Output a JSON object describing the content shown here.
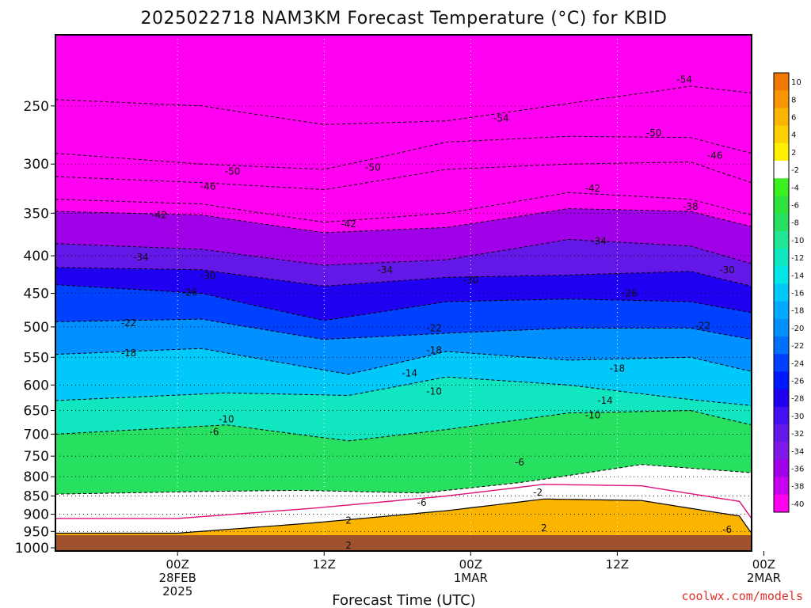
{
  "chart_data": {
    "type": "heatmap",
    "title": "2025022718 NAM3KM Forecast Temperature (°C) for KBID",
    "xlabel": "Forecast Time (UTC)",
    "ylabel": "",
    "y_ticks": [
      250,
      300,
      350,
      400,
      450,
      500,
      550,
      600,
      650,
      700,
      750,
      800,
      850,
      900,
      950,
      1000
    ],
    "y_range_hpa": [
      200,
      1010
    ],
    "y_scale": "log",
    "x_range_hours": [
      -4,
      53
    ],
    "x_ticks": [
      {
        "hour": 6,
        "lines": [
          "00Z",
          "28FEB",
          "2025"
        ]
      },
      {
        "hour": 18,
        "lines": [
          "12Z"
        ]
      },
      {
        "hour": 30,
        "lines": [
          "00Z",
          "1MAR"
        ]
      },
      {
        "hour": 42,
        "lines": [
          "12Z"
        ]
      },
      {
        "hour": 54,
        "lines": [
          "00Z",
          "2MAR"
        ]
      }
    ],
    "grid": true,
    "colorbar": {
      "placement": "right",
      "levels": [
        10,
        8,
        6,
        4,
        2,
        -2,
        -4,
        -6,
        -8,
        -10,
        -12,
        -14,
        -16,
        -18,
        -20,
        -22,
        -24,
        -26,
        -28,
        -30,
        -32,
        -34,
        -36,
        -38,
        -40
      ],
      "colors": [
        "#f07800",
        "#f79600",
        "#fbb400",
        "#fdd000",
        "#fff000",
        "#ffffff",
        "#3cf020",
        "#2ee23c",
        "#28e060",
        "#20e696",
        "#10e6c0",
        "#00e6e6",
        "#00c8f8",
        "#00aaff",
        "#0090ff",
        "#0070ff",
        "#0040ff",
        "#0018ff",
        "#2000f0",
        "#4410f0",
        "#6418e8",
        "#8018e8",
        "#a000e8",
        "#c800f0",
        "#ff00f0"
      ]
    },
    "isotherms": [
      {
        "value": 2,
        "levels_hpa": [
          955,
          955,
          925,
          890,
          858,
          862,
          905,
          955
        ],
        "hours": [
          -4,
          6,
          17,
          28,
          36,
          44,
          52,
          53
        ]
      },
      {
        "value": -6,
        "levels_hpa": [
          845,
          838,
          835,
          842,
          815,
          770,
          790
        ],
        "hours": [
          -4,
          8,
          16,
          26,
          34,
          44,
          53
        ]
      },
      {
        "value": -10,
        "levels_hpa": [
          700,
          680,
          715,
          690,
          655,
          650,
          680
        ],
        "hours": [
          -4,
          10,
          20,
          28,
          38,
          48,
          53
        ]
      },
      {
        "value": -14,
        "levels_hpa": [
          630,
          615,
          620,
          585,
          600,
          628,
          640
        ],
        "hours": [
          -4,
          10,
          20,
          28,
          38,
          48,
          53
        ]
      },
      {
        "value": -18,
        "levels_hpa": [
          545,
          535,
          580,
          540,
          555,
          550,
          575
        ],
        "hours": [
          -4,
          8,
          20,
          28,
          38,
          48,
          53
        ]
      },
      {
        "value": -22,
        "levels_hpa": [
          492,
          488,
          520,
          510,
          502,
          502,
          520
        ],
        "hours": [
          -4,
          8,
          18,
          28,
          38,
          48,
          53
        ]
      },
      {
        "value": -26,
        "levels_hpa": [
          438,
          450,
          490,
          462,
          458,
          462,
          478
        ],
        "hours": [
          -4,
          8,
          18,
          28,
          38,
          48,
          53
        ]
      },
      {
        "value": -30,
        "levels_hpa": [
          415,
          418,
          440,
          428,
          425,
          420,
          440
        ],
        "hours": [
          -4,
          8,
          18,
          28,
          38,
          48,
          53
        ]
      },
      {
        "value": -34,
        "levels_hpa": [
          385,
          392,
          412,
          405,
          380,
          388,
          410
        ],
        "hours": [
          -4,
          8,
          18,
          28,
          38,
          48,
          53
        ]
      },
      {
        "value": -38,
        "levels_hpa": [
          348,
          352,
          372,
          366,
          345,
          348,
          365
        ],
        "hours": [
          -4,
          8,
          18,
          28,
          38,
          48,
          53
        ]
      },
      {
        "value": -42,
        "levels_hpa": [
          335,
          340,
          360,
          350,
          328,
          335,
          352
        ],
        "hours": [
          -4,
          8,
          18,
          28,
          38,
          48,
          53
        ]
      },
      {
        "value": -46,
        "levels_hpa": [
          312,
          318,
          325,
          305,
          300,
          298,
          318
        ],
        "hours": [
          -4,
          8,
          18,
          28,
          38,
          48,
          53
        ]
      },
      {
        "value": -50,
        "levels_hpa": [
          290,
          300,
          305,
          280,
          275,
          276,
          290
        ],
        "hours": [
          -4,
          8,
          18,
          28,
          38,
          48,
          53
        ]
      },
      {
        "value": -54,
        "levels_hpa": [
          245,
          250,
          265,
          262,
          248,
          235,
          240
        ],
        "hours": [
          -4,
          8,
          18,
          28,
          38,
          48,
          53
        ]
      }
    ],
    "contour_labels": [
      {
        "text": "-54",
        "hour": 32.5,
        "hpa": 260
      },
      {
        "text": "-54",
        "hour": 47.5,
        "hpa": 230
      },
      {
        "text": "-50",
        "hour": 22,
        "hpa": 303
      },
      {
        "text": "-50",
        "hour": 10.5,
        "hpa": 307
      },
      {
        "text": "-50",
        "hour": 45,
        "hpa": 272
      },
      {
        "text": "-46",
        "hour": 8.5,
        "hpa": 322
      },
      {
        "text": "-46",
        "hour": 50,
        "hpa": 292
      },
      {
        "text": "-42",
        "hour": 4.5,
        "hpa": 352
      },
      {
        "text": "-42",
        "hour": 20,
        "hpa": 362
      },
      {
        "text": "-42",
        "hour": 40,
        "hpa": 324
      },
      {
        "text": "-38",
        "hour": 48,
        "hpa": 343
      },
      {
        "text": "-34",
        "hour": 3,
        "hpa": 402
      },
      {
        "text": "-34",
        "hour": 23,
        "hpa": 418
      },
      {
        "text": "-34",
        "hour": 40.5,
        "hpa": 382
      },
      {
        "text": "-30",
        "hour": 8.5,
        "hpa": 426
      },
      {
        "text": "-30",
        "hour": 30,
        "hpa": 432
      },
      {
        "text": "-30",
        "hour": 51,
        "hpa": 418
      },
      {
        "text": "-26",
        "hour": 7,
        "hpa": 449
      },
      {
        "text": "-26",
        "hour": 43,
        "hpa": 450
      },
      {
        "text": "-22",
        "hour": 2,
        "hpa": 494
      },
      {
        "text": "-22",
        "hour": 27,
        "hpa": 502
      },
      {
        "text": "-22",
        "hour": 49,
        "hpa": 498
      },
      {
        "text": "-18",
        "hour": 2,
        "hpa": 543
      },
      {
        "text": "-18",
        "hour": 27,
        "hpa": 538
      },
      {
        "text": "-18",
        "hour": 42,
        "hpa": 570
      },
      {
        "text": "-14",
        "hour": 25,
        "hpa": 578
      },
      {
        "text": "-14",
        "hour": 41,
        "hpa": 630
      },
      {
        "text": "-10",
        "hour": 27,
        "hpa": 612
      },
      {
        "text": "-10",
        "hour": 40,
        "hpa": 660
      },
      {
        "text": "-10",
        "hour": 10,
        "hpa": 668
      },
      {
        "text": "-6",
        "hour": 9,
        "hpa": 695
      },
      {
        "text": "-6",
        "hour": 34,
        "hpa": 765
      },
      {
        "text": "-6",
        "hour": 26,
        "hpa": 868
      },
      {
        "text": "-6",
        "hour": 51,
        "hpa": 945
      },
      {
        "text": "-2",
        "hour": 35.5,
        "hpa": 840
      },
      {
        "text": "2",
        "hour": 36,
        "hpa": 940
      },
      {
        "text": "2",
        "hour": 20,
        "hpa": 918
      },
      {
        "text": "2",
        "hour": 20,
        "hpa": 993
      }
    ]
  },
  "credit": "coolwx.com/models"
}
